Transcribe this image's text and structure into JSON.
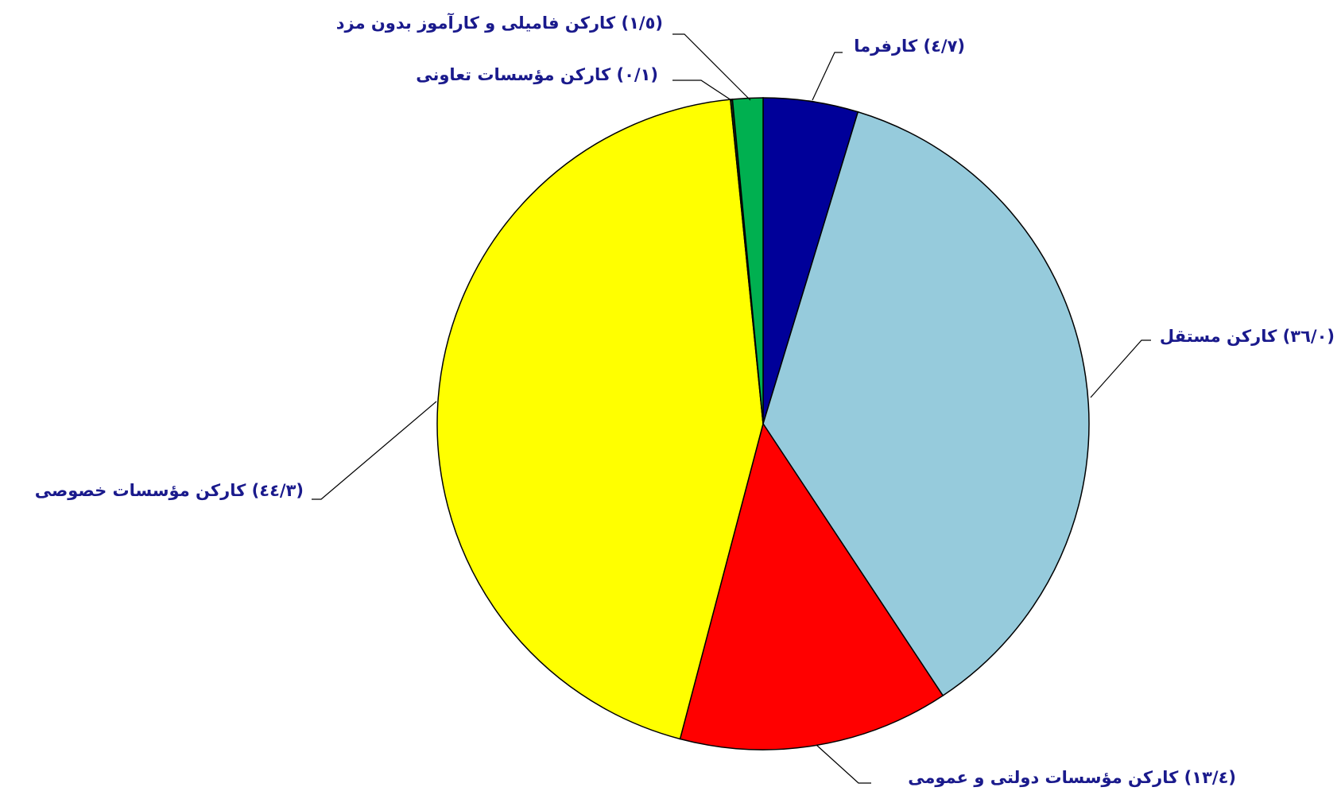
{
  "chart_data": {
    "type": "pie",
    "categories": [
      "کارفرما",
      "کارکن مستقل",
      "کارکن مؤسسات دولتی و عمومی",
      "کارکن مؤسسات خصوصی",
      "کارکن مؤسسات تعاونی",
      "کارکن فامیلی و کارآموز بدون مزد"
    ],
    "values": [
      4.7,
      36.0,
      13.4,
      44.3,
      0.1,
      1.5
    ],
    "value_labels": [
      "(٤/٧)",
      "(٣٦/٠)",
      "(١٣/٤)",
      "(٤٤/٣)",
      "(٠/١)",
      "(١/٥)"
    ],
    "colors": [
      "#000099",
      "#96cbdc",
      "#ff0000",
      "#ffff00",
      "#1a3a1a",
      "#00b050"
    ]
  }
}
